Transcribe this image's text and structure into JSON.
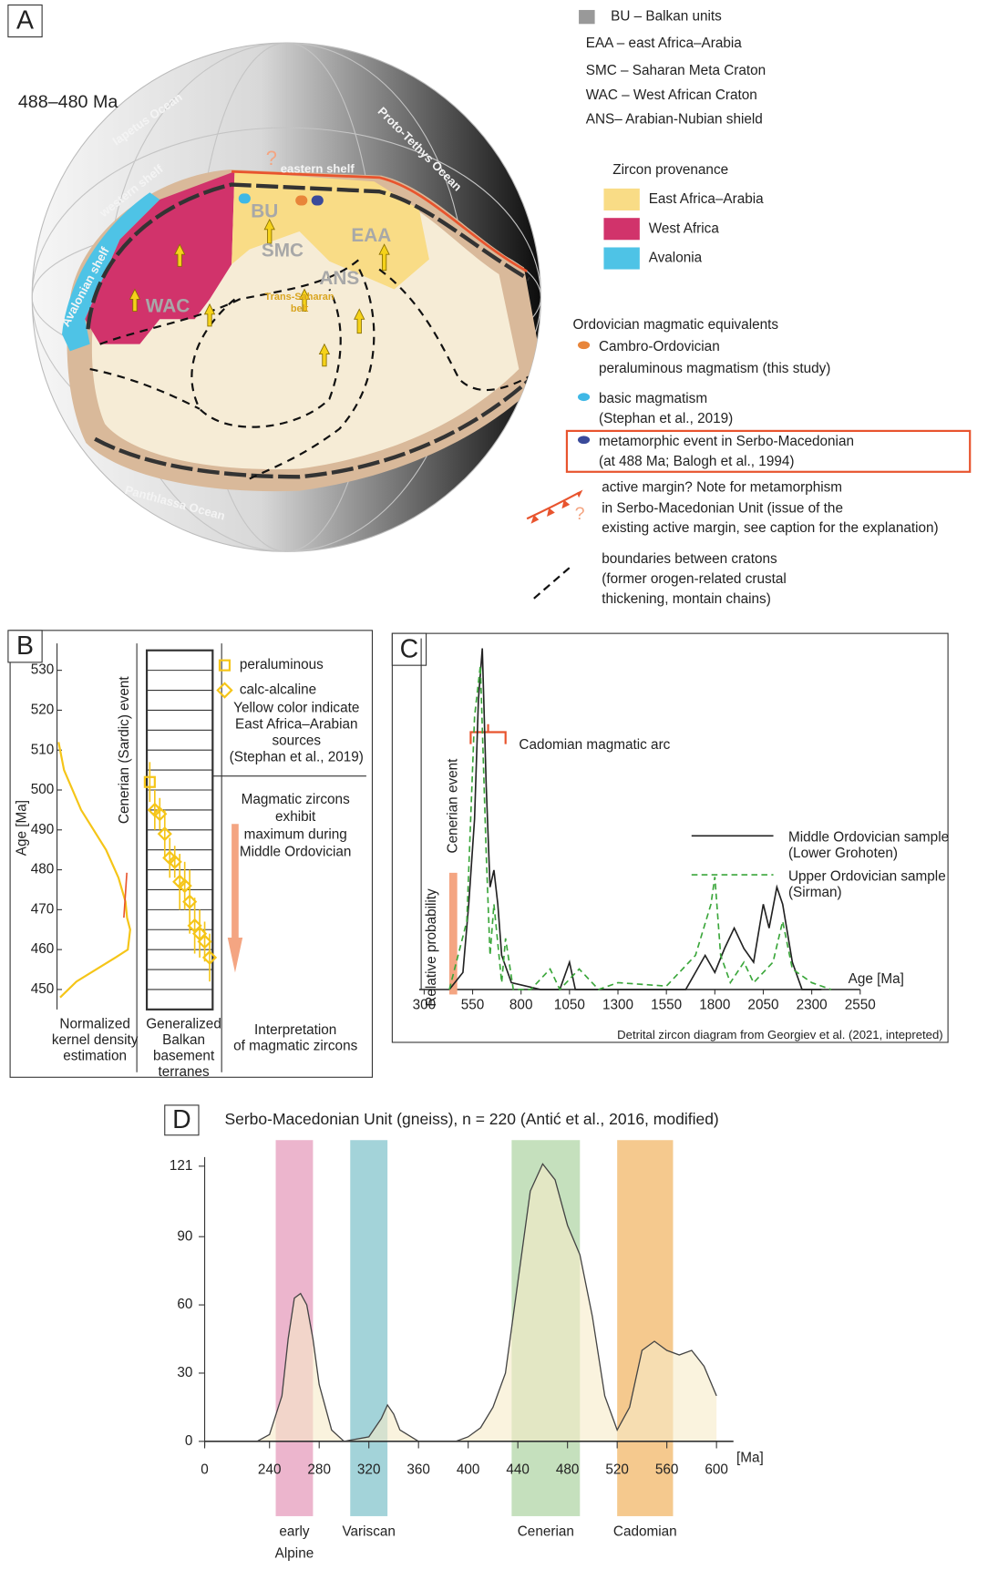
{
  "panel_a": {
    "label": "A",
    "period": "488–480 Ma",
    "map_labels": [
      "Iapetus Ocean",
      "western shelf",
      "Avalonian shelf",
      "eastern shelf",
      "Proto-Tethys Ocean",
      "Panthlassa Ocean",
      "BU",
      "EAA",
      "SMC",
      "ANS",
      "WAC",
      "Trans-Saharan",
      "belt",
      "?"
    ],
    "abbreviations": [
      "BU – Balkan units",
      "EAA – east Africa–Arabia",
      "SMC – Saharan Meta Craton",
      "WAC – West African Craton",
      "ANS– Arabian-Nubian shield"
    ],
    "provenance": {
      "title": "Zircon provenance",
      "items": [
        {
          "name": "East Africa–Arabia",
          "color": "#f9dc86"
        },
        {
          "name": "West Africa",
          "color": "#d1336b"
        },
        {
          "name": "Avalonia",
          "color": "#4ec3e6"
        }
      ]
    },
    "equivalents": {
      "title": "Ordovician magmatic equivalents",
      "items": [
        {
          "lines": [
            "Cambro-Ordovician",
            "peraluminous magmatism (this study)"
          ],
          "color": "#e8853a"
        },
        {
          "lines": [
            "basic magmatism",
            "(Stephan et al., 2019)"
          ],
          "color": "#3fb8e6"
        },
        {
          "lines": [
            "metamorphic event in Serbo-Macedonian",
            "(at 488 Ma; Balogh et al., 1994)"
          ],
          "color": "#3a4a9a"
        }
      ]
    },
    "active_margin": [
      "active margin? Note for metamorphism",
      "in Serbo-Macedonian Unit (issue of the",
      "existing active margin, see caption for the explanation)"
    ],
    "active_margin_mark": "?",
    "boundaries": [
      "boundaries between cratons",
      "(former orogen-related crustal",
      "thickening, montain chains)"
    ]
  },
  "chart_data": [
    {
      "type": "agecolumn",
      "label": "B",
      "y_label": "Age [Ma]",
      "ylim": [
        445,
        535
      ],
      "yticks": [
        450,
        460,
        470,
        480,
        490,
        500,
        510,
        520,
        530
      ],
      "kde": {
        "color": "#f5c518",
        "ages": [
          512,
          505,
          495,
          485,
          478,
          472,
          468,
          465,
          460,
          458,
          455,
          452,
          448
        ],
        "values": [
          0.02,
          0.09,
          0.31,
          0.63,
          0.79,
          0.88,
          0.9,
          0.94,
          0.91,
          0.75,
          0.5,
          0.25,
          0.04
        ]
      },
      "series": [
        {
          "name": "peraluminous",
          "marker": "square",
          "color": "#f5c518",
          "values": [
            502
          ],
          "errors": [
            5
          ]
        },
        {
          "name": "calc-alcaline",
          "marker": "diamond",
          "color": "#f5c518",
          "values": [
            495,
            494,
            489,
            483,
            482,
            477,
            476,
            472,
            466,
            464,
            462,
            458
          ],
          "errors": [
            5,
            4,
            6,
            5,
            4,
            7,
            6,
            8,
            7,
            6,
            5,
            6
          ]
        }
      ],
      "note": [
        "Yellow color indicate",
        "East Africa–Arabian",
        "sources",
        "(Stephan et al., 2019)"
      ],
      "event_label": "Cenerian (Sardic) event",
      "interpretation": [
        "Magmatic zircons",
        "exhibit",
        "maximum during",
        "Middle Ordovician"
      ],
      "columns": [
        [
          "Normalized",
          "kernel density",
          "estimation"
        ],
        [
          "Generalized",
          "Balkan",
          "basement",
          "terranes"
        ],
        [
          "Interpretation",
          "of magmatic zircons"
        ]
      ]
    },
    {
      "type": "line",
      "label": "C",
      "x_label": "Age [Ma]",
      "y_label": "Relative probability",
      "xlim": [
        300,
        2550
      ],
      "xticks": [
        300,
        550,
        800,
        1050,
        1300,
        1550,
        1800,
        2050,
        2300,
        2550
      ],
      "ylim": [
        0,
        100
      ],
      "series": [
        {
          "name": "Middle Ordovician sample",
          "note": "(Lower Grohoten)",
          "color": "#222222",
          "dash": false,
          "x": [
            430,
            500,
            530,
            560,
            580,
            600,
            620,
            640,
            660,
            680,
            700,
            750,
            900,
            1000,
            1050,
            1080,
            1300,
            1550,
            1650,
            1700,
            1750,
            1800,
            1850,
            1900,
            1950,
            2000,
            2050,
            2080,
            2120,
            2150,
            2200,
            2250,
            2350
          ],
          "values": [
            0,
            5,
            25,
            50,
            85,
            100,
            60,
            30,
            35,
            25,
            10,
            2,
            0,
            0,
            8,
            0,
            0,
            0,
            0,
            5,
            10,
            5,
            12,
            18,
            12,
            8,
            25,
            18,
            30,
            25,
            8,
            0,
            0
          ]
        },
        {
          "name": "Upper Ordovician sample",
          "note": "(Sirman)",
          "color": "#3aa63a",
          "dash": true,
          "x": [
            430,
            520,
            560,
            590,
            620,
            640,
            660,
            700,
            720,
            760,
            850,
            950,
            1000,
            1100,
            1200,
            1300,
            1550,
            1700,
            1780,
            1800,
            1830,
            1880,
            1950,
            2000,
            2100,
            2150,
            2200,
            2300,
            2400
          ],
          "values": [
            0,
            20,
            80,
            95,
            40,
            10,
            25,
            2,
            15,
            0,
            0,
            6,
            0,
            6,
            0,
            2,
            1,
            10,
            25,
            33,
            10,
            2,
            8,
            2,
            8,
            20,
            6,
            2,
            0
          ]
        }
      ],
      "arc": {
        "label": "Cadomian magmatic arc",
        "range": [
          540,
          720
        ],
        "color": "#e8542e"
      },
      "event": {
        "label": "Cenerian event",
        "x": 450,
        "color": "#f4a582"
      },
      "caption": "Detrital zircon diagram from Georgiev et al. (2021, intepreted)"
    },
    {
      "type": "area",
      "label": "D",
      "title": "Serbo-Macedonian Unit (gneiss), n = 220 (Antić et al., 2016, modified)",
      "x_unit": "[Ma]",
      "xlim": [
        0,
        600
      ],
      "xticks": [
        0,
        240,
        280,
        320,
        360,
        400,
        440,
        480,
        520,
        560,
        600
      ],
      "ylim": [
        0,
        125
      ],
      "yticks": [
        0,
        30,
        60,
        90,
        121
      ],
      "color": "#f7ebc8",
      "line_color": "#444444",
      "x": [
        230,
        240,
        250,
        255,
        260,
        265,
        270,
        275,
        280,
        290,
        300,
        320,
        330,
        335,
        340,
        345,
        360,
        390,
        400,
        410,
        420,
        430,
        440,
        450,
        460,
        470,
        480,
        490,
        500,
        510,
        520,
        530,
        540,
        550,
        560,
        570,
        580,
        590,
        600
      ],
      "values": [
        0,
        3,
        20,
        45,
        63,
        65,
        60,
        45,
        25,
        5,
        0,
        2,
        10,
        16,
        12,
        5,
        0,
        0,
        2,
        6,
        15,
        30,
        70,
        110,
        122,
        115,
        95,
        82,
        55,
        20,
        5,
        15,
        40,
        44,
        40,
        38,
        40,
        33,
        20
      ],
      "bands": [
        {
          "label": [
            "early",
            "Alpine"
          ],
          "range": [
            245,
            275
          ],
          "color": "#e7a3c1"
        },
        {
          "label": [
            "Variscan"
          ],
          "range": [
            305,
            335
          ],
          "color": "#8cc8cf"
        },
        {
          "label": [
            "Cenerian"
          ],
          "range": [
            435,
            490
          ],
          "color": "#b6d8ad"
        },
        {
          "label": [
            "Cadomian"
          ],
          "range": [
            520,
            565
          ],
          "color": "#f2bb72"
        }
      ]
    }
  ]
}
